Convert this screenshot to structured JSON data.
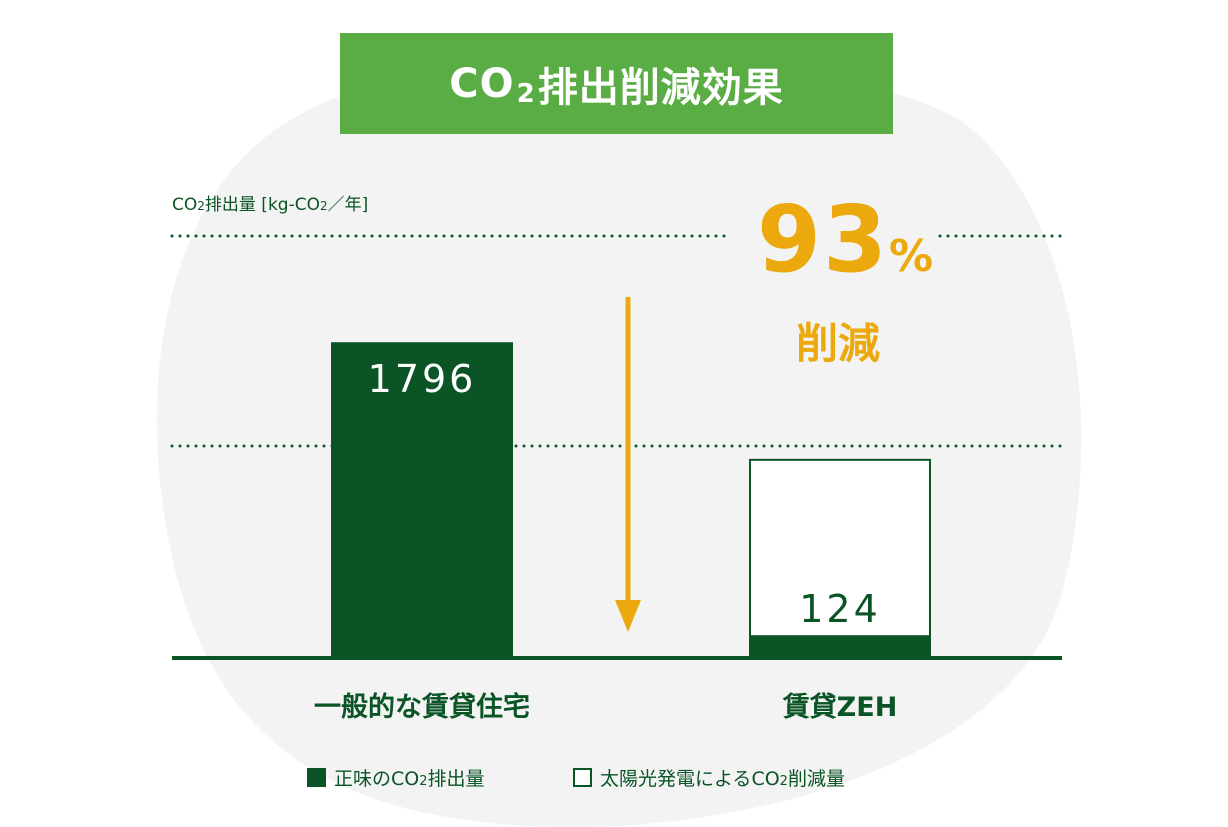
{
  "title": {
    "pre": "CO",
    "sub": "2",
    "post": "排出削減効果"
  },
  "unit_label": {
    "pre": "CO",
    "sub": "2",
    "mid": "排出量 [kg-CO",
    "sub2": "2",
    "post": "／年]"
  },
  "reduction": {
    "number": "93",
    "sign": "%",
    "word": "削減"
  },
  "colors": {
    "bar": "#0a5426",
    "accent": "#eba90d",
    "title_bg": "#5aac45",
    "background_shape": "#f3f3f3"
  },
  "chart_data": {
    "type": "bar",
    "title": "CO2排出削減効果",
    "ylabel": "CO2排出量 [kg-CO2／年]",
    "categories": [
      "一般的な賃貸住宅",
      "賃貸ZEH"
    ],
    "series": [
      {
        "name": "正味のCO2排出量",
        "values": [
          1796,
          124
        ]
      },
      {
        "name": "太陽光発電によるCO2削減量",
        "values": [
          0,
          1003
        ]
      }
    ],
    "data_labels": [
      "1796",
      "124"
    ],
    "ylim": [
      0,
      2400
    ],
    "grid": "dotted",
    "annotation": "93%削減"
  },
  "legend": [
    {
      "pre": "正味の",
      "co": "CO",
      "sub": "2",
      "post": "排出量",
      "style": "filled"
    },
    {
      "pre": "太陽光発電による",
      "co": "CO",
      "sub": "2",
      "post": "削減量",
      "style": "empty"
    }
  ]
}
